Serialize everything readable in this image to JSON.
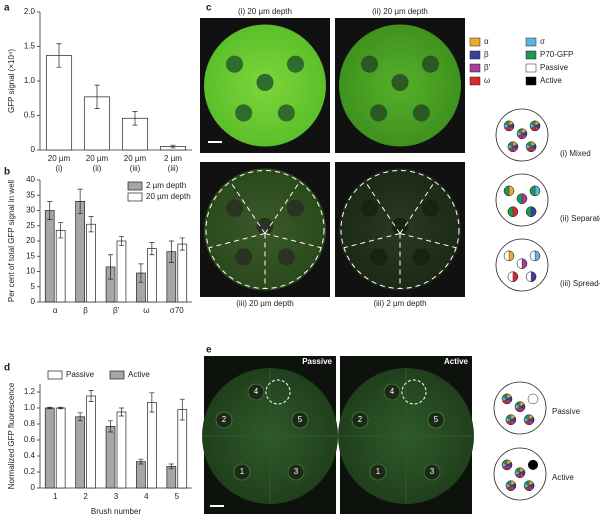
{
  "panel_labels": [
    "a",
    "b",
    "c",
    "d",
    "e"
  ],
  "chart_data": [
    {
      "type": "bar",
      "ylabel": "GFP signal (×10⁴)",
      "categories": [
        "20 µm",
        "20 µm",
        "20 µm",
        "2 µm"
      ],
      "sublabels": [
        "(i)",
        "(ii)",
        "(iii)",
        "(iii)"
      ],
      "values": [
        1.37,
        0.77,
        0.46,
        0.05
      ],
      "errors": [
        0.17,
        0.17,
        0.1,
        0.02
      ],
      "color": "#ffffff",
      "ylim": [
        0,
        2
      ],
      "yticks": [
        0,
        0.5,
        {
          "value": 1,
          "label": "1.0"
        },
        1.5,
        {
          "value": 2,
          "label": "2.0"
        }
      ]
    },
    {
      "type": "bar",
      "ylabel": "Per cent of total GFP signal in well",
      "categories": [
        "α",
        "β",
        "β′",
        "ω",
        "σ70"
      ],
      "series": [
        {
          "name": "2 µm depth",
          "color": "#a6a6a6",
          "values": [
            30,
            33,
            11.5,
            9.5,
            16.5
          ],
          "errors": [
            3,
            4,
            4,
            3,
            3.5
          ]
        },
        {
          "name": "20 µm depth",
          "color": "#ffffff",
          "values": [
            23.5,
            25.5,
            20,
            17.5,
            19
          ],
          "errors": [
            2.5,
            2.5,
            1.5,
            2,
            2
          ]
        }
      ],
      "ylim": [
        0,
        40
      ],
      "yticks": [
        0,
        5,
        10,
        15,
        20,
        25,
        30,
        35,
        40
      ],
      "legend": "upper right"
    },
    {
      "type": "bar",
      "ylabel": "Normalized GFP fluorescence",
      "xlabel": "Brush number",
      "categories": [
        "1",
        "2",
        "3",
        "4",
        "5"
      ],
      "series": [
        {
          "name": "Active",
          "color": "#a6a6a6",
          "values": [
            1.0,
            0.89,
            0.77,
            0.33,
            0.27
          ],
          "errors": [
            0.01,
            0.05,
            0.07,
            0.03,
            0.03
          ]
        },
        {
          "name": "Passive",
          "color": "#ffffff",
          "values": [
            1.0,
            1.15,
            0.95,
            1.07,
            0.98
          ],
          "errors": [
            0.01,
            0.07,
            0.05,
            0.12,
            0.13
          ]
        }
      ],
      "legend_order": [
        1,
        0
      ],
      "ylim": [
        0,
        1.3
      ],
      "yticks": [
        0,
        0.2,
        0.4,
        0.6,
        0.8,
        {
          "value": 1,
          "label": "1.0"
        },
        1.2
      ],
      "legend": "top"
    }
  ],
  "panel_c": {
    "image_labels": [
      "(i) 20 µm depth",
      "(ii) 20 µm depth",
      "(iii) 20 µm depth",
      "(iii) 2 µm depth"
    ],
    "legend": [
      {
        "name": "α",
        "color": "#f0a830"
      },
      {
        "name": "β",
        "color": "#3d3d9e"
      },
      {
        "name": "β′",
        "color": "#a33d9e"
      },
      {
        "name": "ω",
        "color": "#d42a2a"
      },
      {
        "name": "σ",
        "color": "#5ab4e6"
      },
      {
        "name": "P70-GFP",
        "color": "#1a9950"
      },
      {
        "name": "Passive",
        "color": "#ffffff"
      },
      {
        "name": "Active",
        "color": "#000000"
      }
    ],
    "schematic_labels": [
      "(i) Mixed",
      "(ii) Separate",
      "(iii) Spread-out"
    ]
  },
  "panel_e": {
    "image_labels": [
      "Passive",
      "Active"
    ],
    "well_numbers": [
      "1",
      "2",
      "3",
      "4",
      "5"
    ],
    "schematic_labels": [
      "Passive",
      "Active"
    ]
  }
}
